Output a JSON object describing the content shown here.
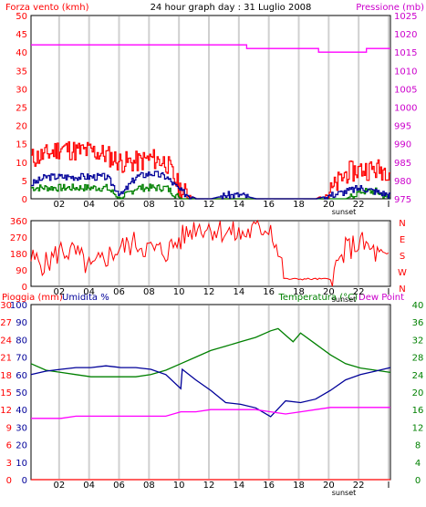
{
  "chart_data": [
    {
      "type": "line",
      "title": "24 hour graph day : 31 Luglio 2008",
      "ylabel": "Forza vento (kmh)",
      "y2label": "Pressione (mb)",
      "ylim": [
        0,
        50
      ],
      "y2lim": [
        975,
        1025
      ],
      "yticks": [
        "0",
        "5",
        "10",
        "15",
        "20",
        "25",
        "30",
        "35",
        "40",
        "45",
        "50"
      ],
      "y2ticks": [
        "975",
        "980",
        "985",
        "990",
        "995",
        "1000",
        "1005",
        "1010",
        "1015",
        "1020",
        "1025"
      ],
      "xticks": [
        "02",
        "04",
        "06",
        "08",
        "10",
        "12",
        "14",
        "16",
        "18",
        "20",
        "22",
        "I"
      ],
      "xnote": "sunset",
      "colors": {
        "gust": "#ff0000",
        "avg": "#000099",
        "wind_low": "#008000",
        "pressure": "#ff00ff",
        "axis_left": "#ff0000",
        "axis_right": "#cc00cc"
      },
      "series": [
        {
          "key": "gust",
          "x": [
            0,
            1,
            2,
            3,
            4,
            5,
            6,
            7,
            8,
            9,
            10,
            11,
            12,
            13,
            14,
            15,
            16,
            17,
            18,
            19,
            20,
            21,
            22,
            23,
            24
          ],
          "values": [
            11,
            12,
            14,
            13,
            13,
            12,
            10,
            10,
            11,
            10,
            2,
            0,
            0,
            0,
            0,
            0,
            0,
            0,
            0,
            0,
            2,
            7,
            8,
            8,
            8
          ]
        },
        {
          "key": "avg",
          "x": [
            0,
            1,
            2,
            3,
            4,
            5,
            6,
            7,
            8,
            9,
            10,
            11,
            12,
            13,
            14,
            15,
            16,
            17,
            18,
            19,
            20,
            21,
            22,
            23,
            24
          ],
          "values": [
            4,
            6,
            6,
            6,
            6,
            6,
            1,
            6,
            7,
            6,
            2,
            0,
            0,
            1,
            1,
            0,
            0,
            0,
            0,
            0,
            1,
            2,
            3,
            2,
            1
          ]
        },
        {
          "key": "wind_low",
          "x": [
            0,
            1,
            2,
            3,
            4,
            5,
            6,
            7,
            8,
            9,
            10,
            11,
            12,
            13,
            14,
            15,
            16,
            17,
            18,
            19,
            20,
            21,
            22,
            23,
            24
          ],
          "values": [
            3,
            3,
            3,
            3,
            3,
            3,
            0,
            3,
            3,
            3,
            0,
            0,
            0,
            0,
            0,
            0,
            0,
            0,
            0,
            0,
            0,
            0,
            2,
            2,
            0
          ]
        },
        {
          "key": "pressure",
          "x": [
            0,
            1.6,
            3.2,
            4.8,
            6.4,
            8,
            9.6,
            11.2,
            12.8,
            14.4,
            16,
            17.6,
            19.2,
            20.8,
            22.4,
            24
          ],
          "values": [
            1017,
            1017,
            1017,
            1017,
            1017,
            1017,
            1017,
            1017,
            1017,
            1016,
            1016,
            1016,
            1015,
            1015,
            1016,
            1016
          ]
        }
      ]
    },
    {
      "type": "scatter",
      "ylabel": "N W S E N",
      "ylim": [
        0,
        360
      ],
      "yticks": [
        "0",
        "90",
        "180",
        "270",
        "360"
      ],
      "xticks": [
        "02",
        "04",
        "06",
        "08",
        "10",
        "12",
        "14",
        "16",
        "18",
        "20",
        "22",
        "I"
      ],
      "xnote": "sunset",
      "compass": [
        "N",
        "W",
        "S",
        "E",
        "N"
      ],
      "color": "#ff0000",
      "series": [
        {
          "key": "direction",
          "x": [
            0,
            1,
            2,
            3,
            4,
            5,
            6,
            7,
            8,
            9,
            10,
            11,
            12,
            13,
            14,
            15,
            16,
            17,
            18,
            19,
            20,
            21,
            22,
            23,
            24
          ],
          "values": [
            150,
            120,
            200,
            180,
            90,
            160,
            210,
            240,
            200,
            190,
            260,
            330,
            320,
            300,
            280,
            310,
            330,
            40,
            40,
            40,
            40,
            200,
            240,
            180,
            120
          ]
        }
      ]
    },
    {
      "type": "line",
      "ylabel": "Pioggia (mm)",
      "ylabel2": "Umidita %",
      "y2label": "Temperatura (°C)",
      "y2label2": "Dew Point",
      "ylim": [
        0,
        100
      ],
      "y2lim": [
        0,
        40
      ],
      "yticks": [
        "0",
        "10",
        "20",
        "30",
        "40",
        "50",
        "60",
        "70",
        "80",
        "90",
        "100"
      ],
      "yticks_rain": [
        "0",
        "3",
        "6",
        "9",
        "12",
        "15",
        "18",
        "21",
        "24",
        "27",
        "30"
      ],
      "y2ticks": [
        "0",
        "4",
        "8",
        "12",
        "16",
        "20",
        "24",
        "28",
        "32",
        "36",
        "40"
      ],
      "xticks": [
        "02",
        "04",
        "06",
        "08",
        "10",
        "12",
        "14",
        "16",
        "18",
        "20",
        "22",
        "I"
      ],
      "xnote": "sunset",
      "colors": {
        "temperature": "#008000",
        "humidity": "#000099",
        "dewpoint": "#ff00ff",
        "rain": "#ff0000",
        "axis_left_rain": "#ff0000",
        "axis_left_hum": "#000099",
        "axis_right": "#008000"
      },
      "series": [
        {
          "key": "temperature",
          "x": [
            0,
            1,
            2,
            3,
            4,
            5,
            6,
            7,
            8,
            9,
            10,
            11,
            12,
            13,
            14,
            15,
            16,
            16.5,
            17,
            17.5,
            18,
            19,
            20,
            21,
            22,
            23,
            24
          ],
          "values": [
            26.5,
            25,
            24.5,
            24,
            23.5,
            23.5,
            23.5,
            23.5,
            24,
            25,
            26.5,
            28,
            29.5,
            30.5,
            31.5,
            32.5,
            34,
            34.5,
            33,
            31.5,
            33.5,
            31,
            28.5,
            26.5,
            25.5,
            25,
            24.5
          ]
        },
        {
          "key": "humidity",
          "x": [
            0,
            1,
            2,
            3,
            4,
            5,
            6,
            7,
            8,
            9,
            10,
            10.1,
            11,
            12,
            13,
            14,
            15,
            16,
            17,
            18,
            19,
            20,
            21,
            22,
            23,
            24
          ],
          "values": [
            60,
            62,
            63,
            64,
            64,
            65,
            64,
            64,
            63,
            60,
            52,
            63,
            57,
            51,
            44,
            43,
            41,
            36,
            45,
            44,
            46,
            51,
            57,
            60,
            62,
            64
          ]
        },
        {
          "key": "dewpoint",
          "x": [
            0,
            1,
            2,
            3,
            4,
            5,
            6,
            7,
            8,
            9,
            10,
            11,
            12,
            13,
            14,
            15,
            16,
            17,
            18,
            19,
            20,
            21,
            22,
            23,
            24
          ],
          "values": [
            14,
            14,
            14,
            14.5,
            14.5,
            14.5,
            14.5,
            14.5,
            14.5,
            14.5,
            15.5,
            15.5,
            16,
            16,
            16,
            16,
            15.5,
            15,
            15.5,
            16,
            16.5,
            16.5,
            16.5,
            16.5,
            16.5
          ]
        },
        {
          "key": "rain",
          "x": [
            0,
            24
          ],
          "values": [
            0,
            0
          ]
        }
      ]
    }
  ]
}
